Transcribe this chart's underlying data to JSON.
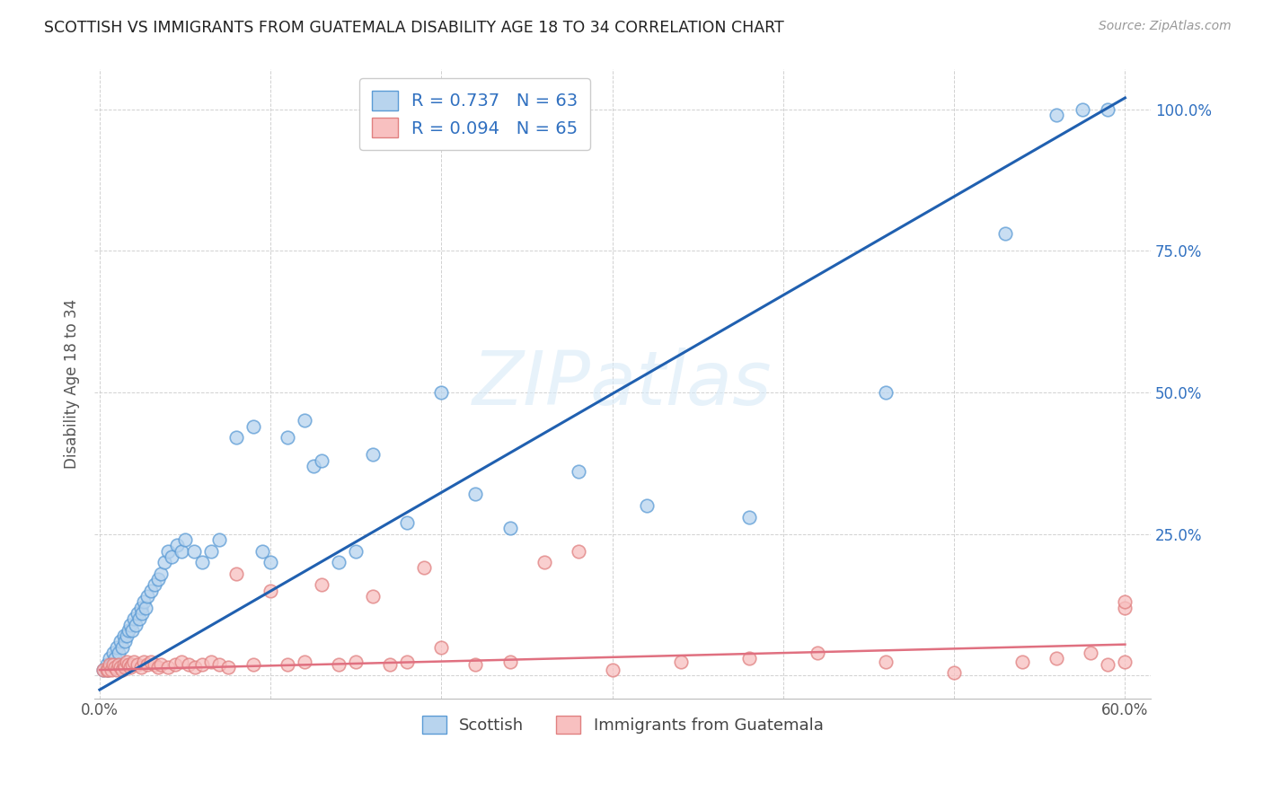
{
  "title": "SCOTTISH VS IMMIGRANTS FROM GUATEMALA DISABILITY AGE 18 TO 34 CORRELATION CHART",
  "source": "Source: ZipAtlas.com",
  "ylabel": "Disability Age 18 to 34",
  "xlim": [
    -0.003,
    0.615
  ],
  "ylim": [
    -0.04,
    1.07
  ],
  "xtick_positions": [
    0.0,
    0.1,
    0.2,
    0.3,
    0.4,
    0.5,
    0.6
  ],
  "xticklabels": [
    "0.0%",
    "",
    "",
    "",
    "",
    "",
    "60.0%"
  ],
  "ytick_positions": [
    0.0,
    0.25,
    0.5,
    0.75,
    1.0
  ],
  "yticklabels_right": [
    "",
    "25.0%",
    "50.0%",
    "75.0%",
    "100.0%"
  ],
  "blue_face": "#b8d4ee",
  "blue_edge": "#5b9bd5",
  "blue_line": "#2060b0",
  "pink_face": "#f8c0c0",
  "pink_edge": "#e08080",
  "pink_line": "#e07080",
  "blue_R": 0.737,
  "blue_N": 63,
  "pink_R": 0.094,
  "pink_N": 65,
  "label_blue": "Scottish",
  "label_pink": "Immigrants from Guatemala",
  "blue_scatter_x": [
    0.002,
    0.004,
    0.005,
    0.006,
    0.007,
    0.008,
    0.009,
    0.01,
    0.011,
    0.012,
    0.013,
    0.014,
    0.015,
    0.016,
    0.017,
    0.018,
    0.019,
    0.02,
    0.021,
    0.022,
    0.023,
    0.024,
    0.025,
    0.026,
    0.027,
    0.028,
    0.03,
    0.032,
    0.034,
    0.036,
    0.038,
    0.04,
    0.042,
    0.045,
    0.048,
    0.05,
    0.055,
    0.06,
    0.065,
    0.07,
    0.08,
    0.09,
    0.095,
    0.1,
    0.11,
    0.12,
    0.125,
    0.13,
    0.14,
    0.15,
    0.16,
    0.18,
    0.2,
    0.22,
    0.24,
    0.28,
    0.32,
    0.38,
    0.46,
    0.53,
    0.56,
    0.575,
    0.59
  ],
  "blue_scatter_y": [
    0.01,
    0.02,
    0.01,
    0.03,
    0.02,
    0.04,
    0.03,
    0.05,
    0.04,
    0.06,
    0.05,
    0.07,
    0.06,
    0.07,
    0.08,
    0.09,
    0.08,
    0.1,
    0.09,
    0.11,
    0.1,
    0.12,
    0.11,
    0.13,
    0.12,
    0.14,
    0.15,
    0.16,
    0.17,
    0.18,
    0.2,
    0.22,
    0.21,
    0.23,
    0.22,
    0.24,
    0.22,
    0.2,
    0.22,
    0.24,
    0.42,
    0.44,
    0.22,
    0.2,
    0.42,
    0.45,
    0.37,
    0.38,
    0.2,
    0.22,
    0.39,
    0.27,
    0.5,
    0.32,
    0.26,
    0.36,
    0.3,
    0.28,
    0.5,
    0.78,
    0.99,
    1.0,
    1.0
  ],
  "pink_scatter_x": [
    0.002,
    0.004,
    0.005,
    0.006,
    0.007,
    0.008,
    0.009,
    0.01,
    0.011,
    0.012,
    0.013,
    0.014,
    0.015,
    0.016,
    0.017,
    0.018,
    0.019,
    0.02,
    0.022,
    0.024,
    0.026,
    0.028,
    0.03,
    0.032,
    0.034,
    0.036,
    0.04,
    0.044,
    0.048,
    0.052,
    0.056,
    0.06,
    0.065,
    0.07,
    0.075,
    0.08,
    0.09,
    0.1,
    0.11,
    0.12,
    0.13,
    0.14,
    0.15,
    0.16,
    0.17,
    0.18,
    0.19,
    0.2,
    0.22,
    0.24,
    0.26,
    0.28,
    0.3,
    0.34,
    0.38,
    0.42,
    0.46,
    0.5,
    0.54,
    0.56,
    0.58,
    0.59,
    0.6,
    0.6,
    0.6
  ],
  "pink_scatter_y": [
    0.01,
    0.01,
    0.01,
    0.02,
    0.01,
    0.02,
    0.015,
    0.01,
    0.02,
    0.015,
    0.01,
    0.02,
    0.015,
    0.025,
    0.02,
    0.015,
    0.02,
    0.025,
    0.02,
    0.015,
    0.025,
    0.02,
    0.025,
    0.02,
    0.015,
    0.02,
    0.015,
    0.02,
    0.025,
    0.02,
    0.015,
    0.02,
    0.025,
    0.02,
    0.015,
    0.18,
    0.02,
    0.15,
    0.02,
    0.025,
    0.16,
    0.02,
    0.025,
    0.14,
    0.02,
    0.025,
    0.19,
    0.05,
    0.02,
    0.025,
    0.2,
    0.22,
    0.01,
    0.025,
    0.03,
    0.04,
    0.025,
    0.005,
    0.025,
    0.03,
    0.04,
    0.02,
    0.12,
    0.025,
    0.13
  ],
  "blue_line_x": [
    0.0,
    0.6
  ],
  "blue_line_y": [
    -0.025,
    1.02
  ],
  "pink_line_x": [
    0.0,
    0.6
  ],
  "pink_line_y": [
    0.01,
    0.055
  ]
}
